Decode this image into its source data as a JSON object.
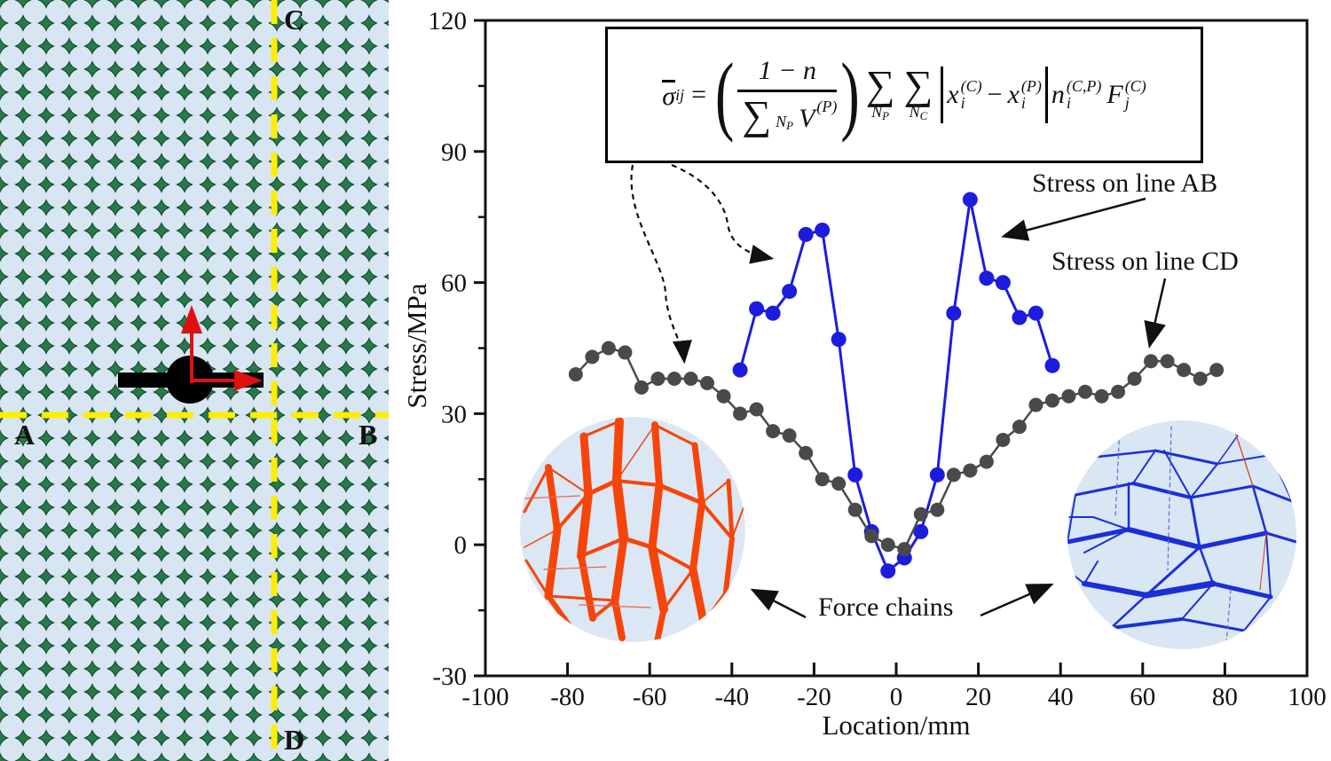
{
  "left_panel": {
    "label_a": "A",
    "label_b": "B",
    "label_c": "C",
    "label_d": "D"
  },
  "chart": {
    "ylabel": "Stress/MPa",
    "xlabel": "Location/mm",
    "legend_ab": "Stress on line AB",
    "legend_cd": "Stress on line CD",
    "force_chains_label": "Force chains",
    "formula": {
      "lhs_var": "σ",
      "lhs_sub": "ij",
      "equals": "=",
      "numerator": "1 − n",
      "sum": "∑",
      "np_main": "N",
      "np_sub": "P",
      "nc_main": "N",
      "nc_sub": "C",
      "v_var": "V",
      "v_sup": "(P)",
      "x_var": "x",
      "i_sub": "i",
      "c_sup": "(C)",
      "p_sup": "(P)",
      "minus": "−",
      "n_var": "n",
      "ncp_sup": "(C,P)",
      "f_var": "F",
      "j_sub": "j"
    },
    "colors": {
      "series_ab": "#1c1cdf",
      "series_cd": "#4a4a4a",
      "force_chain_compression": "#f64509",
      "force_chain_tension": "#1b2fd8",
      "particle_fill": "#d8e5f2",
      "bond_green": "#27794a",
      "section_line_yellow": "#ffee00",
      "axis_red": "#e01010"
    }
  },
  "chart_data": {
    "type": "line",
    "title": "",
    "xlabel": "Location/mm",
    "ylabel": "Stress/MPa",
    "xlim": [
      -100,
      100
    ],
    "ylim": [
      -30,
      120
    ],
    "xticks": [
      -100,
      -80,
      -60,
      -40,
      -20,
      0,
      20,
      40,
      60,
      80,
      100
    ],
    "yticks": [
      -30,
      0,
      30,
      60,
      90,
      120
    ],
    "grid": false,
    "legend_position": "annotated-arrows",
    "series": [
      {
        "name": "Stress on line AB",
        "color": "#1c1cdf",
        "marker": "circle",
        "x": [
          -38,
          -34,
          -30,
          -26,
          -22,
          -18,
          -14,
          -10,
          -6,
          -2,
          2,
          6,
          10,
          14,
          18,
          22,
          26,
          30,
          34,
          38
        ],
        "y": [
          40,
          54,
          53,
          58,
          71,
          72,
          47,
          16,
          3,
          -6,
          -3,
          3,
          16,
          53,
          79,
          61,
          60,
          52,
          53,
          41
        ]
      },
      {
        "name": "Stress on line CD",
        "color": "#4a4a4a",
        "marker": "circle",
        "x": [
          -78,
          -74,
          -70,
          -66,
          -62,
          -58,
          -54,
          -50,
          -46,
          -42,
          -38,
          -34,
          -30,
          -26,
          -22,
          -18,
          -14,
          -10,
          -6,
          -2,
          2,
          6,
          10,
          14,
          18,
          22,
          26,
          30,
          34,
          38,
          42,
          46,
          50,
          54,
          58,
          62,
          66,
          70,
          74,
          78
        ],
        "y": [
          39,
          43,
          45,
          44,
          36,
          38,
          38,
          38,
          37,
          34,
          30,
          31,
          26,
          25,
          21,
          15,
          14,
          8,
          2,
          0,
          -1,
          7,
          8,
          16,
          17,
          19,
          24,
          27,
          32,
          33,
          34,
          35,
          34,
          35,
          38,
          42,
          42,
          40,
          38,
          40
        ]
      }
    ],
    "annotations": [
      "Stress on line AB",
      "Stress on line CD",
      "Force chains"
    ]
  }
}
